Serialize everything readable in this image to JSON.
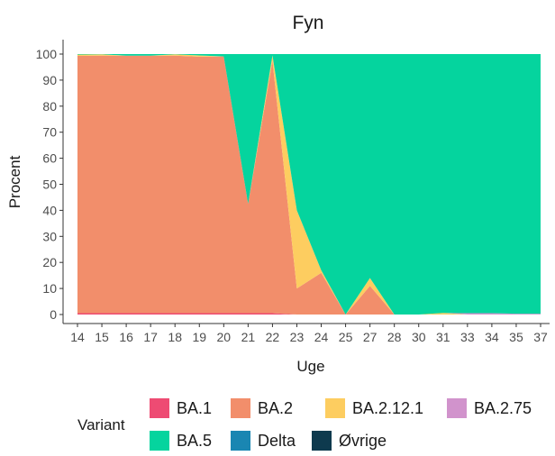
{
  "chart_data": {
    "type": "area",
    "stacked": true,
    "title": "Fyn",
    "xlabel": "Uge",
    "ylabel": "Procent",
    "ylim": [
      0,
      100
    ],
    "yticks": [
      0,
      10,
      20,
      30,
      40,
      50,
      60,
      70,
      80,
      90,
      100
    ],
    "categories": [
      "14",
      "15",
      "16",
      "17",
      "18",
      "19",
      "20",
      "21",
      "22",
      "23",
      "24",
      "25",
      "27",
      "28",
      "30",
      "31",
      "33",
      "34",
      "35",
      "37"
    ],
    "series": [
      {
        "name": "BA.1",
        "color": "#EE4B73",
        "values": [
          0.5,
          0.5,
          0.5,
          0.5,
          0.5,
          0.5,
          0.5,
          0.5,
          0.5,
          0,
          0,
          0,
          0,
          0,
          0,
          0,
          0,
          0,
          0,
          0
        ]
      },
      {
        "name": "BA.2",
        "color": "#F28E6B",
        "values": [
          98.8,
          98.9,
          98.9,
          98.9,
          98.9,
          98.5,
          98.6,
          42,
          97,
          10,
          16,
          0,
          11,
          0,
          0,
          0,
          0,
          0,
          0,
          0
        ]
      },
      {
        "name": "BA.2.12.1",
        "color": "#FDCD60",
        "values": [
          0.5,
          0.5,
          0,
          0,
          0.5,
          0.5,
          0,
          0,
          2,
          30,
          1,
          0,
          3,
          0,
          0,
          0.6,
          0,
          0,
          0,
          0
        ]
      },
      {
        "name": "BA.2.75",
        "color": "#D193CC",
        "values": [
          0,
          0,
          0,
          0,
          0,
          0,
          0,
          0,
          0,
          0,
          0,
          0,
          0,
          0,
          0,
          0,
          0.5,
          0.5,
          0.3,
          0.3
        ]
      },
      {
        "name": "BA.5",
        "color": "#05D49E",
        "values": [
          0.2,
          0.1,
          0.6,
          0.6,
          0.1,
          0.5,
          0.9,
          57.5,
          0.5,
          60,
          83,
          100,
          86,
          100,
          100,
          99.4,
          99.5,
          99.5,
          99.7,
          99.7
        ]
      },
      {
        "name": "Delta",
        "color": "#1A86B2",
        "values": [
          0,
          0,
          0,
          0,
          0,
          0,
          0,
          0,
          0,
          0,
          0,
          0,
          0,
          0,
          0,
          0,
          0,
          0,
          0,
          0
        ]
      },
      {
        "name": "Øvrige",
        "color": "#0E3A4E",
        "values": [
          0,
          0,
          0,
          0,
          0,
          0,
          0,
          0,
          0,
          0,
          0,
          0,
          0,
          0,
          0,
          0,
          0,
          0,
          0,
          0
        ]
      }
    ],
    "legend": {
      "title": "Variant",
      "placement": "bottom",
      "items": [
        {
          "label": "BA.1",
          "color": "#EE4B73"
        },
        {
          "label": "BA.2",
          "color": "#F28E6B"
        },
        {
          "label": "BA.2.12.1",
          "color": "#FDCD60"
        },
        {
          "label": "BA.2.75",
          "color": "#D193CC"
        },
        {
          "label": "BA.5",
          "color": "#05D49E"
        },
        {
          "label": "Delta",
          "color": "#1A86B2"
        },
        {
          "label": "Øvrige",
          "color": "#0E3A4E"
        }
      ]
    },
    "grid": false
  }
}
